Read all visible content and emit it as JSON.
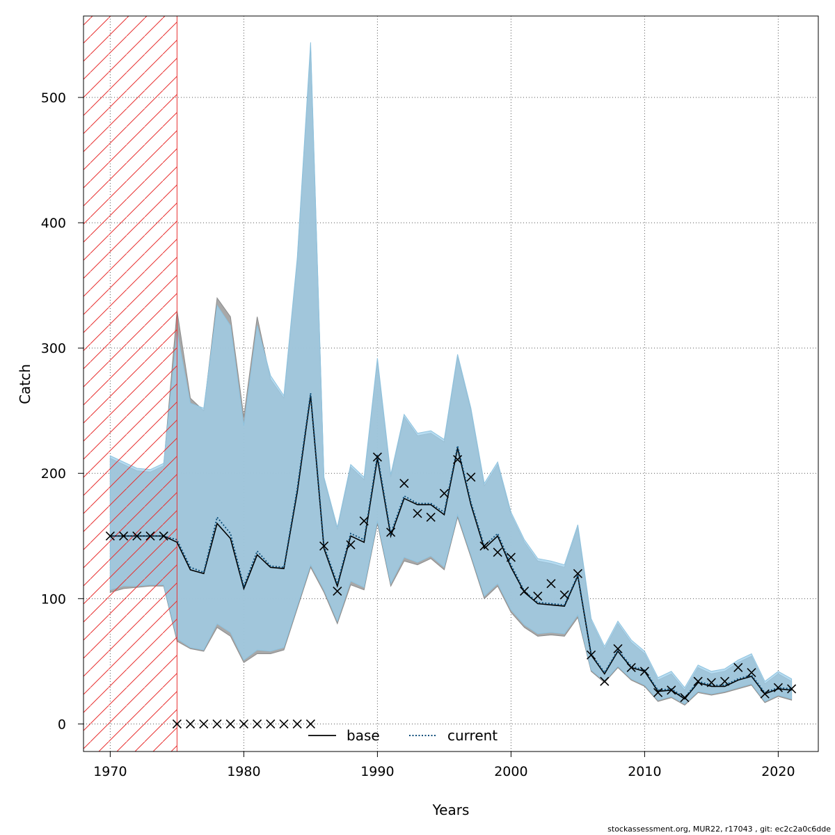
{
  "chart_data": {
    "type": "line",
    "title": "",
    "xlabel": "Years",
    "ylabel": "Catch",
    "xlim": [
      1968,
      2023
    ],
    "ylim": [
      -22,
      565
    ],
    "xticks": [
      1970,
      1980,
      1990,
      2000,
      2010,
      2020
    ],
    "yticks": [
      0,
      100,
      200,
      300,
      400,
      500
    ],
    "grid": true,
    "legend_position": "bottom-center",
    "legend": [
      {
        "label": "base",
        "style": "solid",
        "color": "#000000"
      },
      {
        "label": "current",
        "style": "dotted",
        "color": "#0a4d7a"
      }
    ],
    "hatched_region": {
      "x_start": 1968,
      "x_end": 1975,
      "color": "#e83030"
    },
    "colors": {
      "band_base": "#9e9e9e",
      "band_current": "#9fd0ec",
      "band_overlap": "#a3c4d6",
      "observed": "#000000"
    },
    "x": [
      1970,
      1971,
      1972,
      1973,
      1974,
      1975,
      1976,
      1977,
      1978,
      1979,
      1980,
      1981,
      1982,
      1983,
      1984,
      1985,
      1986,
      1987,
      1988,
      1989,
      1990,
      1991,
      1992,
      1993,
      1994,
      1995,
      1996,
      1997,
      1998,
      1999,
      2000,
      2001,
      2002,
      2003,
      2004,
      2005,
      2006,
      2007,
      2008,
      2009,
      2010,
      2011,
      2012,
      2013,
      2014,
      2015,
      2016,
      2017,
      2018,
      2019,
      2020,
      2021
    ],
    "series": [
      {
        "name": "base",
        "values": [
          150,
          150,
          150,
          150,
          150,
          145,
          123,
          120,
          160,
          148,
          108,
          135,
          125,
          124,
          185,
          262,
          140,
          110,
          150,
          145,
          212,
          150,
          180,
          175,
          175,
          167,
          220,
          175,
          140,
          150,
          125,
          105,
          96,
          95,
          94,
          118,
          55,
          40,
          58,
          45,
          42,
          26,
          27,
          20,
          33,
          30,
          30,
          35,
          38,
          24,
          28,
          27
        ],
        "lower": [
          105,
          108,
          109,
          110,
          110,
          66,
          60,
          58,
          77,
          70,
          49,
          56,
          56,
          59,
          92,
          125,
          105,
          80,
          111,
          107,
          160,
          110,
          130,
          127,
          132,
          123,
          165,
          133,
          100,
          110,
          89,
          77,
          70,
          71,
          70,
          85,
          42,
          33,
          45,
          35,
          30,
          18,
          21,
          15,
          25,
          23,
          25,
          28,
          31,
          17,
          22,
          19
        ],
        "upper": [
          212,
          207,
          202,
          201,
          206,
          330,
          260,
          250,
          340,
          325,
          245,
          325,
          275,
          260,
          370,
          540,
          195,
          155,
          205,
          195,
          290,
          197,
          245,
          230,
          232,
          225,
          293,
          250,
          190,
          207,
          167,
          145,
          130,
          128,
          125,
          157,
          82,
          60,
          80,
          65,
          56,
          35,
          40,
          27,
          45,
          40,
          42,
          49,
          54,
          32,
          40,
          34
        ]
      },
      {
        "name": "current",
        "values": [
          150,
          150,
          150,
          150,
          150,
          147,
          125,
          121,
          165,
          152,
          110,
          138,
          126,
          125,
          188,
          264,
          142,
          112,
          152,
          147,
          215,
          152,
          182,
          176,
          176,
          169,
          222,
          177,
          142,
          152,
          127,
          106,
          97,
          96,
          95,
          119,
          56,
          41,
          59,
          46,
          43,
          27,
          28,
          21,
          34,
          31,
          31,
          36,
          39,
          25,
          29,
          28
        ],
        "lower": [
          107,
          110,
          110,
          111,
          111,
          68,
          61,
          59,
          80,
          73,
          51,
          59,
          58,
          61,
          94,
          127,
          107,
          82,
          114,
          109,
          162,
          112,
          133,
          129,
          134,
          125,
          167,
          135,
          102,
          112,
          91,
          79,
          72,
          73,
          72,
          87,
          43,
          34,
          46,
          36,
          31,
          19,
          22,
          16,
          26,
          24,
          26,
          29,
          32,
          18,
          23,
          20
        ],
        "upper": [
          214,
          209,
          204,
          203,
          208,
          313,
          256,
          252,
          334,
          318,
          238,
          318,
          278,
          262,
          372,
          544,
          197,
          157,
          207,
          197,
          292,
          199,
          247,
          232,
          234,
          227,
          295,
          252,
          192,
          209,
          169,
          147,
          132,
          130,
          127,
          159,
          84,
          62,
          82,
          67,
          58,
          37,
          42,
          29,
          47,
          42,
          44,
          51,
          56,
          34,
          42,
          36
        ]
      }
    ],
    "observed": {
      "x": [
        1970,
        1971,
        1972,
        1973,
        1974,
        1975,
        1976,
        1977,
        1978,
        1979,
        1980,
        1981,
        1982,
        1983,
        1984,
        1985,
        1986,
        1987,
        1988,
        1989,
        1990,
        1991,
        1992,
        1993,
        1994,
        1995,
        1996,
        1997,
        1998,
        1999,
        2000,
        2001,
        2002,
        2003,
        2004,
        2005,
        2006,
        2007,
        2008,
        2009,
        2010,
        2011,
        2012,
        2013,
        2014,
        2015,
        2016,
        2017,
        2018,
        2019,
        2020,
        2021
      ],
      "y": [
        150,
        150,
        150,
        150,
        150,
        0,
        0,
        0,
        0,
        0,
        0,
        0,
        0,
        0,
        0,
        0,
        142,
        106,
        143,
        162,
        213,
        153,
        192,
        168,
        165,
        184,
        211,
        197,
        142,
        137,
        133,
        106,
        102,
        112,
        103,
        120,
        55,
        34,
        60,
        45,
        42,
        25,
        27,
        21,
        34,
        33,
        34,
        45,
        41,
        24,
        29,
        28
      ]
    }
  },
  "footer": "stockassessment.org, MUR22, r17043 , git: ec2c2a0c6dde"
}
